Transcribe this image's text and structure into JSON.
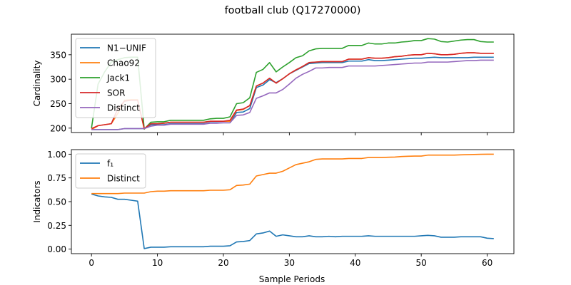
{
  "figure": {
    "title": "football club (Q17270000)"
  },
  "chart_data": [
    {
      "type": "line",
      "ylabel": "Cardinality",
      "xlabel": "",
      "xlim": [
        -3.05,
        64.05
      ],
      "ylim": [
        191,
        392
      ],
      "xticks": [
        0,
        10,
        20,
        30,
        40,
        50,
        60
      ],
      "xtick_labels_visible": false,
      "yticks": [
        200,
        250,
        300,
        350
      ],
      "grid": false,
      "legend_position": "upper-left",
      "x": [
        0,
        1,
        2,
        3,
        4,
        5,
        6,
        7,
        8,
        9,
        10,
        11,
        12,
        13,
        14,
        15,
        16,
        17,
        18,
        19,
        20,
        21,
        22,
        23,
        24,
        25,
        26,
        27,
        28,
        29,
        30,
        31,
        32,
        33,
        34,
        35,
        36,
        37,
        38,
        39,
        40,
        41,
        42,
        43,
        44,
        45,
        46,
        47,
        48,
        49,
        50,
        51,
        52,
        53,
        54,
        55,
        56,
        57,
        58,
        59,
        60,
        61
      ],
      "series": [
        {
          "name": "N1−UNIF",
          "color": "#1f77b4",
          "values": [
            197,
            197,
            197,
            197,
            197,
            199,
            199,
            199,
            199,
            207,
            207,
            207,
            209,
            209,
            209,
            209,
            209,
            209,
            211,
            211,
            211,
            211,
            232,
            233,
            240,
            283,
            288,
            299,
            293,
            301,
            311,
            318,
            325,
            332,
            333,
            334,
            334,
            334,
            334,
            337,
            337,
            337,
            340,
            338,
            338,
            339,
            340,
            341,
            342,
            343,
            343,
            344,
            345,
            344,
            344,
            344,
            344,
            344,
            345,
            345,
            345,
            345
          ]
        },
        {
          "name": "Chao92",
          "color": "#ff7f0e",
          "values": [
            197,
            205,
            207,
            209,
            230,
            257,
            258,
            258,
            198,
            209,
            209,
            210,
            212,
            212,
            212,
            212,
            212,
            212,
            214,
            214,
            214,
            214,
            236,
            238,
            246,
            286,
            292,
            302,
            292,
            301,
            311,
            319,
            326,
            334,
            335,
            336,
            336,
            336,
            336,
            341,
            341,
            341,
            344,
            343,
            343,
            344,
            346,
            347,
            349,
            350,
            350,
            353,
            352,
            350,
            350,
            351,
            353,
            354,
            354,
            353,
            353,
            353
          ]
        },
        {
          "name": "Jack1",
          "color": "#2ca02c",
          "values": [
            200,
            290,
            315,
            335,
            340,
            344,
            345,
            345,
            198,
            212,
            213,
            213,
            216,
            216,
            216,
            216,
            216,
            216,
            219,
            220,
            220,
            223,
            250,
            252,
            262,
            314,
            320,
            334,
            315,
            325,
            334,
            344,
            348,
            358,
            362,
            363,
            363,
            363,
            363,
            369,
            369,
            369,
            374,
            372,
            372,
            374,
            374,
            376,
            377,
            379,
            379,
            383,
            382,
            377,
            376,
            378,
            380,
            381,
            381,
            377,
            376,
            376
          ]
        },
        {
          "name": "SOR",
          "color": "#d62728",
          "values": [
            199,
            205,
            207,
            209,
            240,
            255,
            257,
            257,
            199,
            209,
            209,
            210,
            212,
            212,
            212,
            212,
            212,
            212,
            214,
            214,
            214,
            216,
            237,
            239,
            246,
            286,
            292,
            302,
            292,
            301,
            311,
            319,
            326,
            334,
            335,
            336,
            336,
            336,
            336,
            341,
            341,
            341,
            344,
            343,
            343,
            344,
            346,
            347,
            349,
            350,
            350,
            353,
            352,
            350,
            350,
            351,
            353,
            354,
            354,
            353,
            353,
            353
          ]
        },
        {
          "name": "Distinct",
          "color": "#9467bd",
          "values": [
            197,
            197,
            197,
            197,
            197,
            199,
            199,
            199,
            199,
            204,
            206,
            206,
            208,
            208,
            208,
            208,
            208,
            208,
            210,
            210,
            211,
            211,
            226,
            227,
            232,
            261,
            266,
            272,
            272,
            279,
            290,
            302,
            310,
            316,
            323,
            323,
            324,
            324,
            324,
            327,
            327,
            327,
            327,
            327,
            328,
            329,
            330,
            331,
            332,
            333,
            333,
            335,
            335,
            335,
            335,
            336,
            337,
            338,
            338,
            339,
            339,
            339
          ]
        }
      ]
    },
    {
      "type": "line",
      "ylabel": "Indicators",
      "xlabel": "Sample Periods",
      "xlim": [
        -3.05,
        64.05
      ],
      "ylim": [
        -0.048,
        1.048
      ],
      "xticks": [
        0,
        10,
        20,
        30,
        40,
        50,
        60
      ],
      "yticks": [
        0.0,
        0.25,
        0.5,
        0.75,
        1.0
      ],
      "ytick_labels": [
        "0.00",
        "0.25",
        "0.50",
        "0.75",
        "1.00"
      ],
      "grid": false,
      "legend_position": "upper-left",
      "x": [
        0,
        1,
        2,
        3,
        4,
        5,
        6,
        7,
        8,
        9,
        10,
        11,
        12,
        13,
        14,
        15,
        16,
        17,
        18,
        19,
        20,
        21,
        22,
        23,
        24,
        25,
        26,
        27,
        28,
        29,
        30,
        31,
        32,
        33,
        34,
        35,
        36,
        37,
        38,
        39,
        40,
        41,
        42,
        43,
        44,
        45,
        46,
        47,
        48,
        49,
        50,
        51,
        52,
        53,
        54,
        55,
        56,
        57,
        58,
        59,
        60,
        61
      ],
      "series": [
        {
          "name": "f₁",
          "color": "#1f77b4",
          "values": [
            0.58,
            0.56,
            0.55,
            0.545,
            0.525,
            0.525,
            0.515,
            0.505,
            0.005,
            0.02,
            0.02,
            0.02,
            0.025,
            0.025,
            0.025,
            0.025,
            0.025,
            0.025,
            0.03,
            0.03,
            0.03,
            0.035,
            0.075,
            0.08,
            0.09,
            0.16,
            0.17,
            0.19,
            0.135,
            0.15,
            0.14,
            0.13,
            0.13,
            0.14,
            0.13,
            0.13,
            0.135,
            0.13,
            0.135,
            0.135,
            0.135,
            0.135,
            0.14,
            0.135,
            0.135,
            0.135,
            0.135,
            0.135,
            0.135,
            0.135,
            0.14,
            0.145,
            0.14,
            0.125,
            0.125,
            0.125,
            0.13,
            0.13,
            0.13,
            0.13,
            0.115,
            0.11
          ]
        },
        {
          "name": "Distinct",
          "color": "#ff7f0e",
          "values": [
            0.585,
            0.585,
            0.585,
            0.585,
            0.585,
            0.59,
            0.59,
            0.59,
            0.59,
            0.605,
            0.61,
            0.61,
            0.615,
            0.615,
            0.615,
            0.615,
            0.615,
            0.615,
            0.62,
            0.62,
            0.62,
            0.625,
            0.67,
            0.675,
            0.685,
            0.77,
            0.785,
            0.8,
            0.8,
            0.82,
            0.855,
            0.89,
            0.905,
            0.92,
            0.945,
            0.95,
            0.95,
            0.95,
            0.95,
            0.955,
            0.955,
            0.955,
            0.965,
            0.965,
            0.965,
            0.968,
            0.97,
            0.975,
            0.978,
            0.98,
            0.98,
            0.99,
            0.99,
            0.99,
            0.99,
            0.99,
            0.993,
            0.995,
            0.997,
            0.999,
            1.0,
            1.0
          ]
        }
      ]
    }
  ]
}
